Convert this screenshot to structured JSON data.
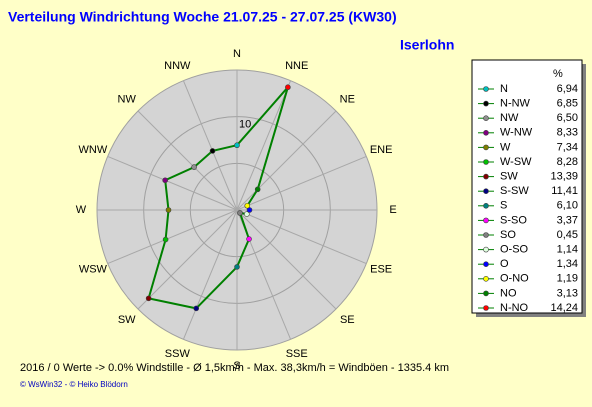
{
  "chart_data": {
    "type": "radar",
    "title": "Verteilung Windrichtung   Woche 21.07.25 - 27.07.25 (KW30)",
    "location": "Iserlohn",
    "direction_labels": [
      "N",
      "NNE",
      "NE",
      "ENE",
      "E",
      "ESE",
      "SE",
      "SSE",
      "S",
      "SSW",
      "SW",
      "WSW",
      "W",
      "WNW",
      "NW",
      "NNW"
    ],
    "rlim": [
      0,
      15
    ],
    "rgrid": [
      5,
      10
    ],
    "rticks": [
      10
    ],
    "legend_header": "%",
    "categories": [
      "N",
      "N-NW",
      "NW",
      "W-NW",
      "W",
      "W-SW",
      "SW",
      "S-SW",
      "S",
      "S-SO",
      "SO",
      "O-SO",
      "O",
      "O-NO",
      "NO",
      "N-NO"
    ],
    "values": [
      6.94,
      6.85,
      6.5,
      8.33,
      7.34,
      8.28,
      13.39,
      11.41,
      6.1,
      3.37,
      0.45,
      1.14,
      1.34,
      1.19,
      3.13,
      14.24
    ],
    "value_labels": [
      "6,94",
      "6,85",
      "6,50",
      "8,33",
      "7,34",
      "8,28",
      "13,39",
      "11,41",
      "6,10",
      "3,37",
      "0,45",
      "1,14",
      "1,34",
      "1,19",
      "3,13",
      "14,24"
    ],
    "colors": [
      "#00c0c0",
      "#000000",
      "#909090",
      "#800080",
      "#808000",
      "#00c000",
      "#800000",
      "#000080",
      "#008080",
      "#ff00ff",
      "#808080",
      "#e0ffe0",
      "#0000ff",
      "#ffff00",
      "#008000",
      "#ff0000"
    ],
    "line_color": "#008000",
    "footer": "2016 / 0 Werte  -> 0.0% Windstille   -   Ø 1,5km/h  -  Max. 38,3km/h = Windböen   -   1335.4 km",
    "credits": "© WsWin32  -  © Heiko Blödorn"
  }
}
